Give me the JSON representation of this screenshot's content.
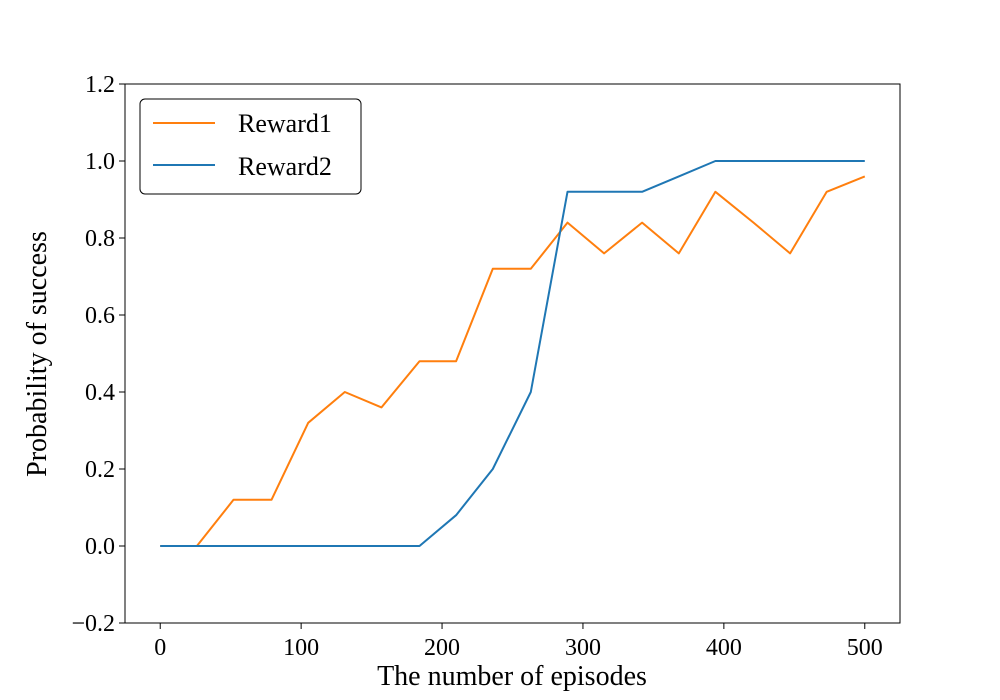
{
  "chart_data": {
    "type": "line",
    "title": "",
    "xlabel": "The number of episodes",
    "ylabel": "Probability of success",
    "xlim": [
      -25,
      525
    ],
    "ylim": [
      -0.2,
      1.2
    ],
    "xticks": [
      0,
      100,
      200,
      300,
      400,
      500
    ],
    "xtick_labels": [
      "0",
      "100",
      "200",
      "300",
      "400",
      "500"
    ],
    "yticks": [
      -0.2,
      0.0,
      0.2,
      0.4,
      0.6,
      0.8,
      1.0,
      1.2
    ],
    "ytick_labels": [
      "−0.2",
      "0.0",
      "0.2",
      "0.4",
      "0.6",
      "0.8",
      "1.0",
      "1.2"
    ],
    "grid": false,
    "legend_position": "upper-left",
    "x": [
      0,
      26,
      52,
      79,
      105,
      131,
      157,
      184,
      210,
      236,
      263,
      289,
      315,
      342,
      368,
      394,
      421,
      447,
      473,
      500
    ],
    "series": [
      {
        "name": "Reward1",
        "color": "#ff7f0e",
        "values": [
          0.0,
          0.0,
          0.12,
          0.12,
          0.32,
          0.4,
          0.36,
          0.48,
          0.48,
          0.72,
          0.72,
          0.84,
          0.76,
          0.84,
          0.76,
          0.92,
          0.84,
          0.76,
          0.92,
          0.96
        ]
      },
      {
        "name": "Reward2",
        "color": "#1f77b4",
        "values": [
          0.0,
          0.0,
          0.0,
          0.0,
          0.0,
          0.0,
          0.0,
          0.0,
          0.08,
          0.2,
          0.4,
          0.92,
          0.92,
          0.92,
          0.96,
          1.0,
          1.0,
          1.0,
          1.0,
          1.0
        ]
      }
    ]
  }
}
